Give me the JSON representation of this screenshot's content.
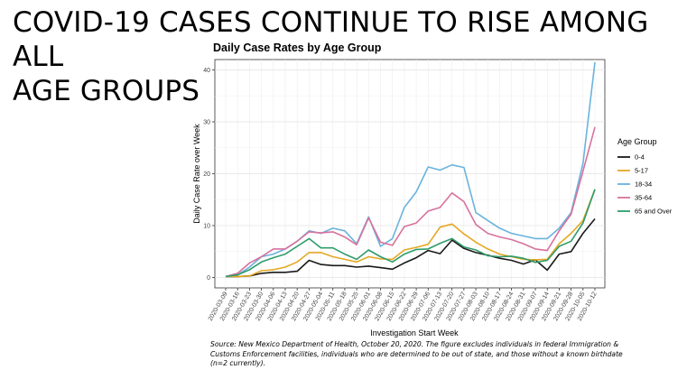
{
  "slide": {
    "title_line1": "COVID-19 CASES CONTINUE TO RISE AMONG ALL",
    "title_line2": "AGE GROUPS",
    "source_note": "Source: New Mexico Department of Health, October 20, 2020. The figure excludes individuals in federal Immigration & Customs Enforcement facilities, individuals who are determined to be out of state, and those without a known birthdate (n=2 currently)."
  },
  "chart_data": {
    "type": "line",
    "title": "Daily Case Rates by Age Group",
    "xlabel": "Investigation Start Week",
    "ylabel": "Daily Case Rate over Week",
    "ylim": [
      -2,
      42
    ],
    "yticks": [
      0,
      10,
      20,
      30,
      40
    ],
    "grid": true,
    "legend_title": "Age Group",
    "legend_position": "right",
    "x": [
      "2020-03-09",
      "2020-03-16",
      "2020-03-23",
      "2020-03-30",
      "2020-04-06",
      "2020-04-13",
      "2020-04-20",
      "2020-04-27",
      "2020-05-04",
      "2020-05-11",
      "2020-05-18",
      "2020-05-25",
      "2020-06-01",
      "2020-06-08",
      "2020-06-15",
      "2020-06-22",
      "2020-06-29",
      "2020-07-06",
      "2020-07-13",
      "2020-07-20",
      "2020-07-27",
      "2020-08-03",
      "2020-08-10",
      "2020-08-17",
      "2020-08-24",
      "2020-08-31",
      "2020-09-07",
      "2020-09-14",
      "2020-09-21",
      "2020-09-28",
      "2020-10-05",
      "2020-10-12"
    ],
    "series": [
      {
        "name": "0-4",
        "color": "#1a1a1a",
        "values": [
          0.2,
          0.2,
          0.3,
          0.8,
          1.0,
          1.0,
          1.2,
          3.3,
          2.5,
          2.3,
          2.3,
          2.0,
          2.2,
          1.9,
          1.6,
          2.8,
          3.8,
          5.2,
          4.6,
          7.2,
          5.6,
          4.8,
          4.3,
          3.7,
          3.3,
          2.6,
          3.4,
          1.4,
          4.5,
          5.0,
          8.5,
          11.3
        ]
      },
      {
        "name": "5-17",
        "color": "#e5a823",
        "values": [
          0.2,
          0.2,
          0.3,
          1.3,
          1.5,
          2.0,
          3.0,
          4.8,
          4.8,
          4.0,
          3.5,
          3.0,
          4.0,
          3.6,
          3.5,
          5.3,
          5.8,
          6.4,
          9.7,
          10.3,
          8.4,
          6.8,
          5.5,
          4.5,
          4.0,
          3.5,
          3.4,
          3.5,
          6.5,
          8.5,
          11.0,
          17.0
        ]
      },
      {
        "name": "18-34",
        "color": "#6ab3dc",
        "values": [
          0.2,
          0.5,
          2.0,
          4.0,
          4.5,
          5.5,
          7.0,
          9.0,
          8.5,
          9.5,
          9.0,
          6.5,
          11.7,
          6.0,
          7.5,
          13.5,
          16.5,
          21.3,
          20.7,
          21.7,
          21.2,
          12.5,
          11.0,
          9.5,
          8.5,
          8.0,
          7.5,
          7.5,
          9.5,
          12.5,
          22.0,
          41.5
        ]
      },
      {
        "name": "35-64",
        "color": "#d8729d",
        "values": [
          0.2,
          0.8,
          2.8,
          4.0,
          5.5,
          5.5,
          7.0,
          8.8,
          8.6,
          8.8,
          7.8,
          6.3,
          11.5,
          6.8,
          6.2,
          9.8,
          10.5,
          12.8,
          13.5,
          16.3,
          14.6,
          10.2,
          8.5,
          7.8,
          7.3,
          6.5,
          5.5,
          5.2,
          9.0,
          12.2,
          20.5,
          29.0
        ]
      },
      {
        "name": "65 and Over",
        "color": "#2f9c6b",
        "values": [
          0.2,
          0.5,
          1.5,
          3.0,
          3.8,
          4.5,
          6.0,
          7.5,
          5.7,
          5.7,
          4.5,
          3.5,
          5.3,
          4.0,
          3.0,
          4.5,
          5.4,
          5.5,
          6.6,
          7.5,
          5.9,
          5.3,
          4.2,
          4.0,
          4.1,
          3.7,
          2.9,
          3.3,
          6.0,
          7.0,
          10.5,
          17.0
        ]
      }
    ]
  }
}
